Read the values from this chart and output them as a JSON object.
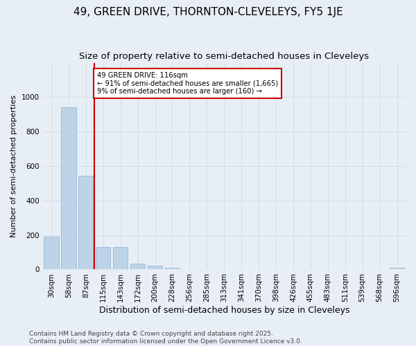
{
  "title": "49, GREEN DRIVE, THORNTON-CLEVELEYS, FY5 1JE",
  "subtitle": "Size of property relative to semi-detached houses in Cleveleys",
  "xlabel": "Distribution of semi-detached houses by size in Cleveleys",
  "ylabel": "Number of semi-detached properties",
  "categories": [
    "30sqm",
    "58sqm",
    "87sqm",
    "115sqm",
    "143sqm",
    "172sqm",
    "200sqm",
    "228sqm",
    "256sqm",
    "285sqm",
    "313sqm",
    "341sqm",
    "370sqm",
    "398sqm",
    "426sqm",
    "455sqm",
    "483sqm",
    "511sqm",
    "539sqm",
    "568sqm",
    "596sqm"
  ],
  "values": [
    190,
    940,
    545,
    130,
    130,
    35,
    20,
    10,
    0,
    0,
    0,
    0,
    0,
    0,
    0,
    0,
    0,
    0,
    0,
    0,
    10
  ],
  "bar_color": "#bdd4e8",
  "bar_edge_color": "#8ab0d0",
  "grid_color": "#d0d8e4",
  "bg_color": "#e8eef5",
  "vline_x": 2.5,
  "vline_color": "#cc0000",
  "annotation_text": "49 GREEN DRIVE: 116sqm\n← 91% of semi-detached houses are smaller (1,665)\n9% of semi-detached houses are larger (160) →",
  "annotation_box_color": "#cc0000",
  "annotation_bg": "#ffffff",
  "ylim": [
    0,
    1200
  ],
  "yticks": [
    0,
    200,
    400,
    600,
    800,
    1000
  ],
  "footer": "Contains HM Land Registry data © Crown copyright and database right 2025.\nContains public sector information licensed under the Open Government Licence v3.0.",
  "title_fontsize": 11,
  "subtitle_fontsize": 9.5,
  "ylabel_fontsize": 8,
  "xlabel_fontsize": 9,
  "tick_fontsize": 7.5,
  "footer_fontsize": 6.5
}
